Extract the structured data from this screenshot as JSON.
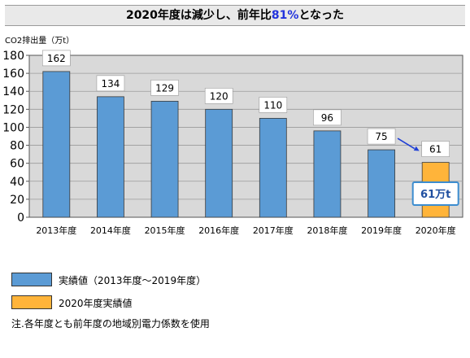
{
  "title": {
    "prefix": "2020年度は減少し、前年比",
    "highlight": "81%",
    "suffix": "となった"
  },
  "colors": {
    "actual": "#5b9bd5",
    "y2020": "#ffb43a",
    "plot_bg": "#d9d9d9",
    "title_highlight": "#2233dd",
    "arrow": "#1f3fd6",
    "callout_border": "#3c8dd0",
    "callout_text": "#1f4fa0"
  },
  "legend": [
    {
      "label": "実績値（2013年度～2019年度）",
      "color": "#5b9bd5"
    },
    {
      "label": "2020年度実績値",
      "color": "#ffb43a"
    }
  ],
  "note": "注.各年度とも前年度の地域別電力係数を使用",
  "chart_data": {
    "type": "bar",
    "title": "2020年度は減少し、前年比81%となった",
    "ylabel": "CO2排出量（万t）",
    "xlabel": "",
    "ylim": [
      0,
      180
    ],
    "yticks": [
      0,
      20,
      40,
      60,
      80,
      100,
      120,
      140,
      160,
      180
    ],
    "grid": true,
    "categories": [
      "2013年度",
      "2014年度",
      "2015年度",
      "2016年度",
      "2017年度",
      "2018年度",
      "2019年度",
      "2020年度"
    ],
    "values": [
      162,
      134,
      129,
      120,
      110,
      96,
      75,
      61
    ],
    "data_labels": [
      "162",
      "134",
      "129",
      "120",
      "110",
      "96",
      "75",
      "61"
    ],
    "bar_colors": [
      "#5b9bd5",
      "#5b9bd5",
      "#5b9bd5",
      "#5b9bd5",
      "#5b9bd5",
      "#5b9bd5",
      "#5b9bd5",
      "#ffb43a"
    ],
    "callout": "61万t"
  }
}
